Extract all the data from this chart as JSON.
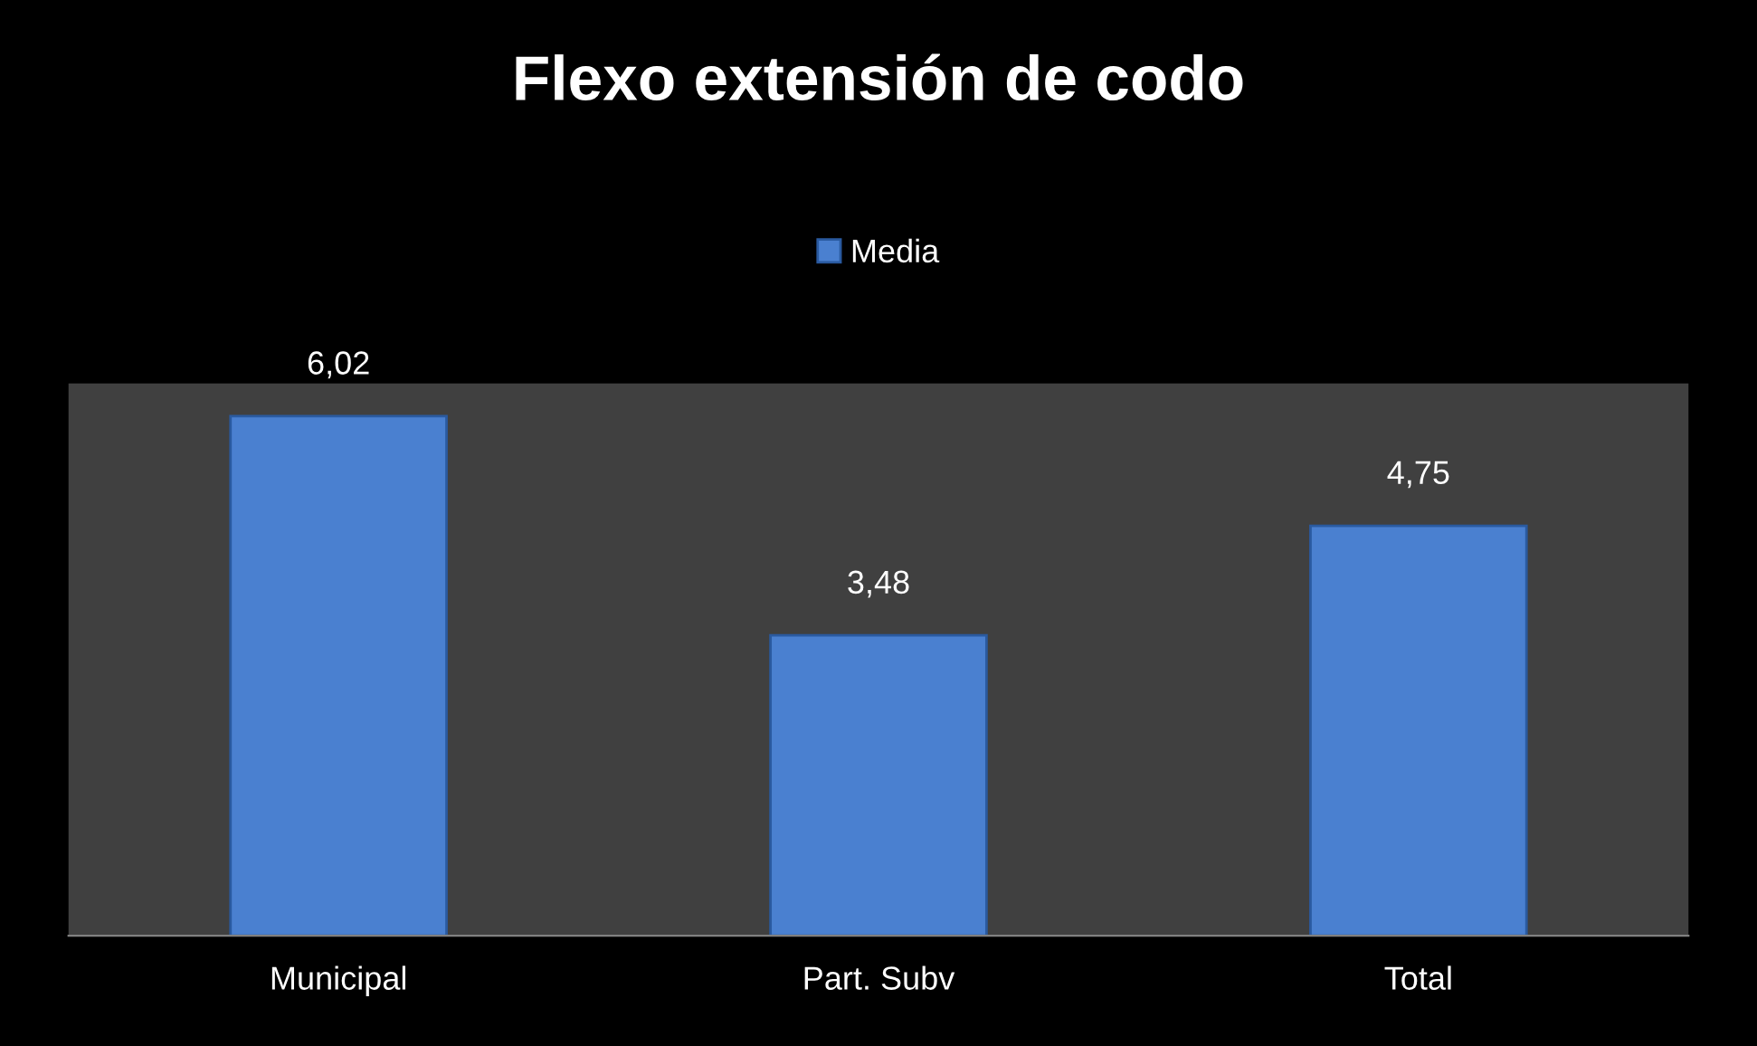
{
  "chart_data": {
    "type": "bar",
    "title": "Flexo extensión de codo",
    "categories": [
      "Municipal",
      "Part. Subv",
      "Total"
    ],
    "series": [
      {
        "name": "Media",
        "color": "#4a80d0",
        "values": [
          6.02,
          3.48,
          4.75
        ],
        "value_labels": [
          "6,02",
          "3,48",
          "4,75"
        ]
      }
    ],
    "ylim": [
      0,
      6.4
    ],
    "tick_labels": "x",
    "grid": false,
    "legend": "top"
  }
}
